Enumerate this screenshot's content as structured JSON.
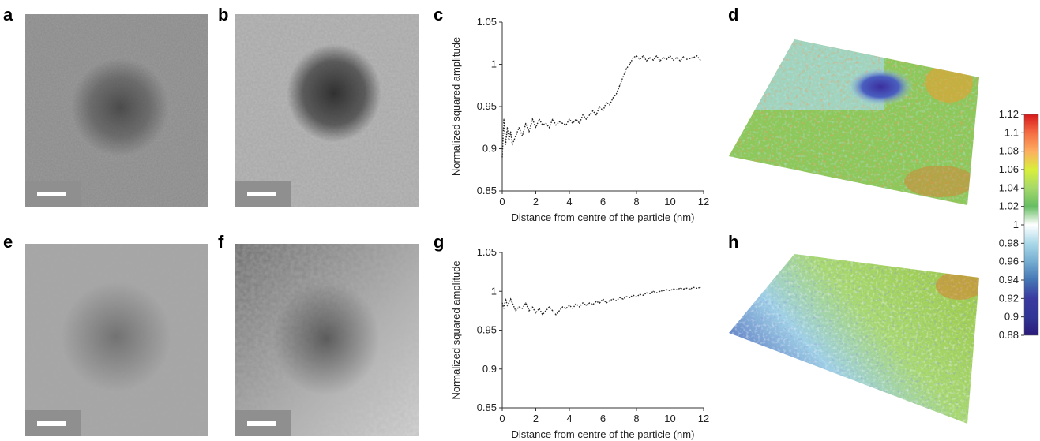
{
  "panels": {
    "a": "a",
    "b": "b",
    "c": "c",
    "d": "d",
    "e": "e",
    "f": "f",
    "g": "g",
    "h": "h"
  },
  "chart_data": [
    {
      "panel": "c",
      "type": "line",
      "xlabel": "Distance from centre of the particle (nm)",
      "ylabel": "Normalized squared amplitude",
      "xlim": [
        0,
        12
      ],
      "ylim": [
        0.85,
        1.05
      ],
      "xticks": [
        "0",
        "2",
        "4",
        "6",
        "8",
        "10",
        "12"
      ],
      "yticks": [
        "0.85",
        "0.9",
        "0.95",
        "1",
        "1.05"
      ],
      "grid": false,
      "line_style": "dotted",
      "x": [
        0,
        0.1,
        0.2,
        0.3,
        0.4,
        0.5,
        0.6,
        0.8,
        1.0,
        1.2,
        1.4,
        1.6,
        1.8,
        2.0,
        2.2,
        2.4,
        2.6,
        2.8,
        3.0,
        3.2,
        3.4,
        3.6,
        3.8,
        4.0,
        4.2,
        4.4,
        4.6,
        4.8,
        5.0,
        5.2,
        5.4,
        5.6,
        5.8,
        6.0,
        6.2,
        6.4,
        6.6,
        6.8,
        7.0,
        7.2,
        7.4,
        7.6,
        7.8,
        8.0,
        8.2,
        8.4,
        8.6,
        8.8,
        9.0,
        9.2,
        9.4,
        9.6,
        9.8,
        10.0,
        10.2,
        10.4,
        10.6,
        10.8,
        11.0,
        11.2,
        11.4,
        11.6,
        11.8
      ],
      "y": [
        0.89,
        0.935,
        0.905,
        0.925,
        0.91,
        0.92,
        0.905,
        0.915,
        0.925,
        0.915,
        0.93,
        0.92,
        0.935,
        0.925,
        0.935,
        0.928,
        0.93,
        0.925,
        0.935,
        0.928,
        0.932,
        0.93,
        0.928,
        0.935,
        0.93,
        0.935,
        0.93,
        0.94,
        0.935,
        0.94,
        0.945,
        0.94,
        0.95,
        0.945,
        0.955,
        0.952,
        0.96,
        0.965,
        0.975,
        0.985,
        0.995,
        1.0,
        1.008,
        1.01,
        1.006,
        1.01,
        1.004,
        1.008,
        1.005,
        1.01,
        1.004,
        1.008,
        1.006,
        1.01,
        1.005,
        1.008,
        1.004,
        1.009,
        1.006,
        1.007,
        1.008,
        1.01,
        1.005
      ]
    },
    {
      "panel": "g",
      "type": "line",
      "xlabel": "Distance from centre of the particle (nm)",
      "ylabel": "Normalized squared amplitude",
      "xlim": [
        0,
        12
      ],
      "ylim": [
        0.85,
        1.05
      ],
      "xticks": [
        "0",
        "2",
        "4",
        "6",
        "8",
        "10",
        "12"
      ],
      "yticks": [
        "0.85",
        "0.9",
        "0.95",
        "1",
        "1.05"
      ],
      "grid": false,
      "line_style": "dotted",
      "x": [
        0,
        0.1,
        0.2,
        0.3,
        0.4,
        0.5,
        0.6,
        0.8,
        1.0,
        1.2,
        1.4,
        1.6,
        1.8,
        2.0,
        2.2,
        2.4,
        2.6,
        2.8,
        3.0,
        3.2,
        3.4,
        3.6,
        3.8,
        4.0,
        4.2,
        4.4,
        4.6,
        4.8,
        5.0,
        5.2,
        5.4,
        5.6,
        5.8,
        6.0,
        6.2,
        6.4,
        6.6,
        6.8,
        7.0,
        7.2,
        7.4,
        7.6,
        7.8,
        8.0,
        8.2,
        8.4,
        8.6,
        8.8,
        9.0,
        9.2,
        9.4,
        9.6,
        9.8,
        10.0,
        10.2,
        10.4,
        10.6,
        10.8,
        11.0,
        11.2,
        11.4,
        11.6,
        11.8
      ],
      "y": [
        0.985,
        0.978,
        0.99,
        0.982,
        0.985,
        0.99,
        0.985,
        0.975,
        0.98,
        0.978,
        0.985,
        0.975,
        0.98,
        0.972,
        0.978,
        0.97,
        0.975,
        0.98,
        0.975,
        0.97,
        0.975,
        0.98,
        0.978,
        0.982,
        0.978,
        0.984,
        0.98,
        0.985,
        0.982,
        0.985,
        0.983,
        0.987,
        0.985,
        0.99,
        0.985,
        0.988,
        0.99,
        0.988,
        0.992,
        0.99,
        0.993,
        0.992,
        0.995,
        0.993,
        0.996,
        0.995,
        0.998,
        0.997,
        1.0,
        0.998,
        1.0,
        1.001,
        1.002,
        1.001,
        1.003,
        1.002,
        1.004,
        1.003,
        1.004,
        1.003,
        1.005,
        1.004,
        1.005
      ]
    }
  ],
  "colorbar": {
    "ticks": [
      "1.12",
      "1.1",
      "1.08",
      "1.06",
      "1.04",
      "1.02",
      "1",
      "0.98",
      "0.96",
      "0.94",
      "0.92",
      "0.9",
      "0.88"
    ],
    "colors": [
      "#d7191c",
      "#f46d43",
      "#fdae61",
      "#d9ef3b",
      "#a6d96a",
      "#66bd63",
      "#ffffff",
      "#abd9e9",
      "#74add1",
      "#4575b4",
      "#3a3aa0",
      "#313695",
      "#2b1a7a"
    ]
  }
}
